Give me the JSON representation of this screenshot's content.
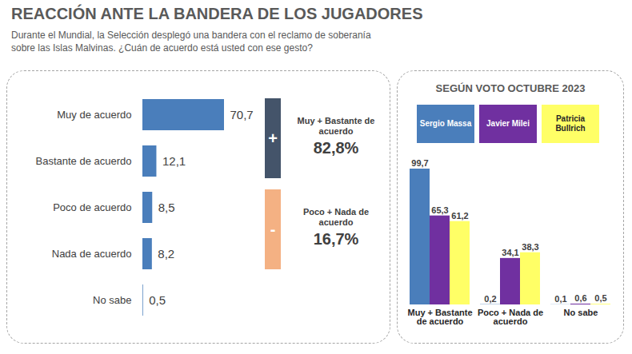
{
  "title": "REACCIÓN ANTE LA BANDERA DE LOS JUGADORES",
  "subtitle": "Durante el Mundial, la Selección desplegó una bandera con el reclamo de soberanía sobre las Islas Malvinas. ¿Cuán de acuerdo está usted con ese gesto?",
  "chart_data": [
    {
      "type": "bar",
      "orientation": "horizontal",
      "categories": [
        "Muy de acuerdo",
        "Bastante de acuerdo",
        "Poco de acuerdo",
        "Nada de acuerdo",
        "No sabe"
      ],
      "values": [
        70.7,
        12.1,
        8.5,
        8.2,
        0.5
      ],
      "value_labels": [
        "70,7",
        "12,1",
        "8,5",
        "8,2",
        "0,5"
      ],
      "data_labels": true,
      "tick_labels": "y",
      "color": "#4a7ebb",
      "annotations": [
        {
          "sign": "+",
          "label": "Muy + Bastante de acuerdo",
          "text": "82,8%",
          "color": "#44546a"
        },
        {
          "sign": "-",
          "label": "Poco + Nada de acuerdo",
          "text": "16,7%",
          "color": "#f4b183"
        }
      ]
    },
    {
      "type": "bar",
      "title": "SEGÚN VOTO OCTUBRE 2023",
      "categories": [
        "Muy + Bastante de acuerdo",
        "Poco + Nada de acuerdo",
        "No sabe"
      ],
      "series": [
        {
          "name": "Sergio Massa",
          "color": "#4a7ebb",
          "values": [
            99.7,
            0.2,
            0.1
          ],
          "value_labels": [
            "99,7",
            "0,2",
            "0,1"
          ]
        },
        {
          "name": "Javier Milei",
          "color": "#7030a0",
          "values": [
            65.3,
            34.1,
            0.6
          ],
          "value_labels": [
            "65,3",
            "34,1",
            "0,6"
          ]
        },
        {
          "name": "Patricia Bullrich",
          "color": "#ffff66",
          "values": [
            61.2,
            38.3,
            0.5
          ],
          "value_labels": [
            "61,2",
            "38,3",
            "0,5"
          ]
        }
      ],
      "data_labels": true,
      "tick_labels": "x",
      "legend": "top"
    }
  ]
}
